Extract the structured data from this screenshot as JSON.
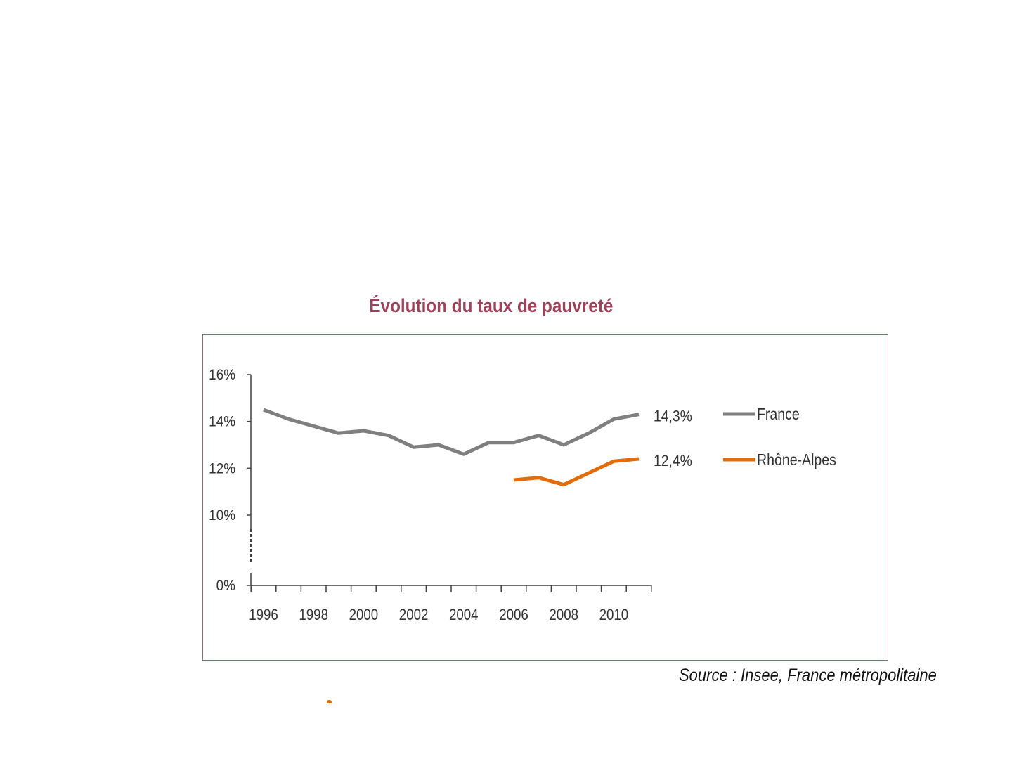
{
  "colors": {
    "title": "#a0405a",
    "france": "#7f7f7f",
    "rhone_alpes": "#e36c0a",
    "axis": "#404040",
    "frame": "#8c6a6e"
  },
  "source_note": "Source : Insee, France métropolitaine",
  "chart_data": {
    "type": "line",
    "title": "Évolution du taux de pauvreté",
    "xlabel": "",
    "ylabel": "",
    "x": [
      1996,
      1997,
      1998,
      1999,
      2000,
      2001,
      2002,
      2003,
      2004,
      2005,
      2006,
      2007,
      2008,
      2009,
      2010,
      2011
    ],
    "ylim": [
      0,
      16
    ],
    "y_axis_break": "between 0% and 10%",
    "y_ticks": [
      {
        "value": 0,
        "label": "0%"
      },
      {
        "value": 10,
        "label": "10%"
      },
      {
        "value": 12,
        "label": "12%"
      },
      {
        "value": 14,
        "label": "14%"
      },
      {
        "value": 16,
        "label": "16%"
      }
    ],
    "x_tick_labels": [
      "1996",
      "1998",
      "2000",
      "2002",
      "2004",
      "2006",
      "2008",
      "2010"
    ],
    "grid": false,
    "legend_position": "right",
    "series": [
      {
        "name": "France",
        "color": "#7f7f7f",
        "end_label": "14,3%",
        "values": [
          14.5,
          14.1,
          13.8,
          13.5,
          13.6,
          13.4,
          12.9,
          13.0,
          12.6,
          13.1,
          13.1,
          13.4,
          13.0,
          13.5,
          14.1,
          14.3
        ]
      },
      {
        "name": "Rhône-Alpes",
        "color": "#e36c0a",
        "end_label": "12,4%",
        "values": [
          null,
          null,
          null,
          null,
          null,
          null,
          null,
          null,
          null,
          null,
          11.5,
          11.6,
          11.3,
          11.8,
          12.3,
          12.4
        ]
      }
    ]
  }
}
